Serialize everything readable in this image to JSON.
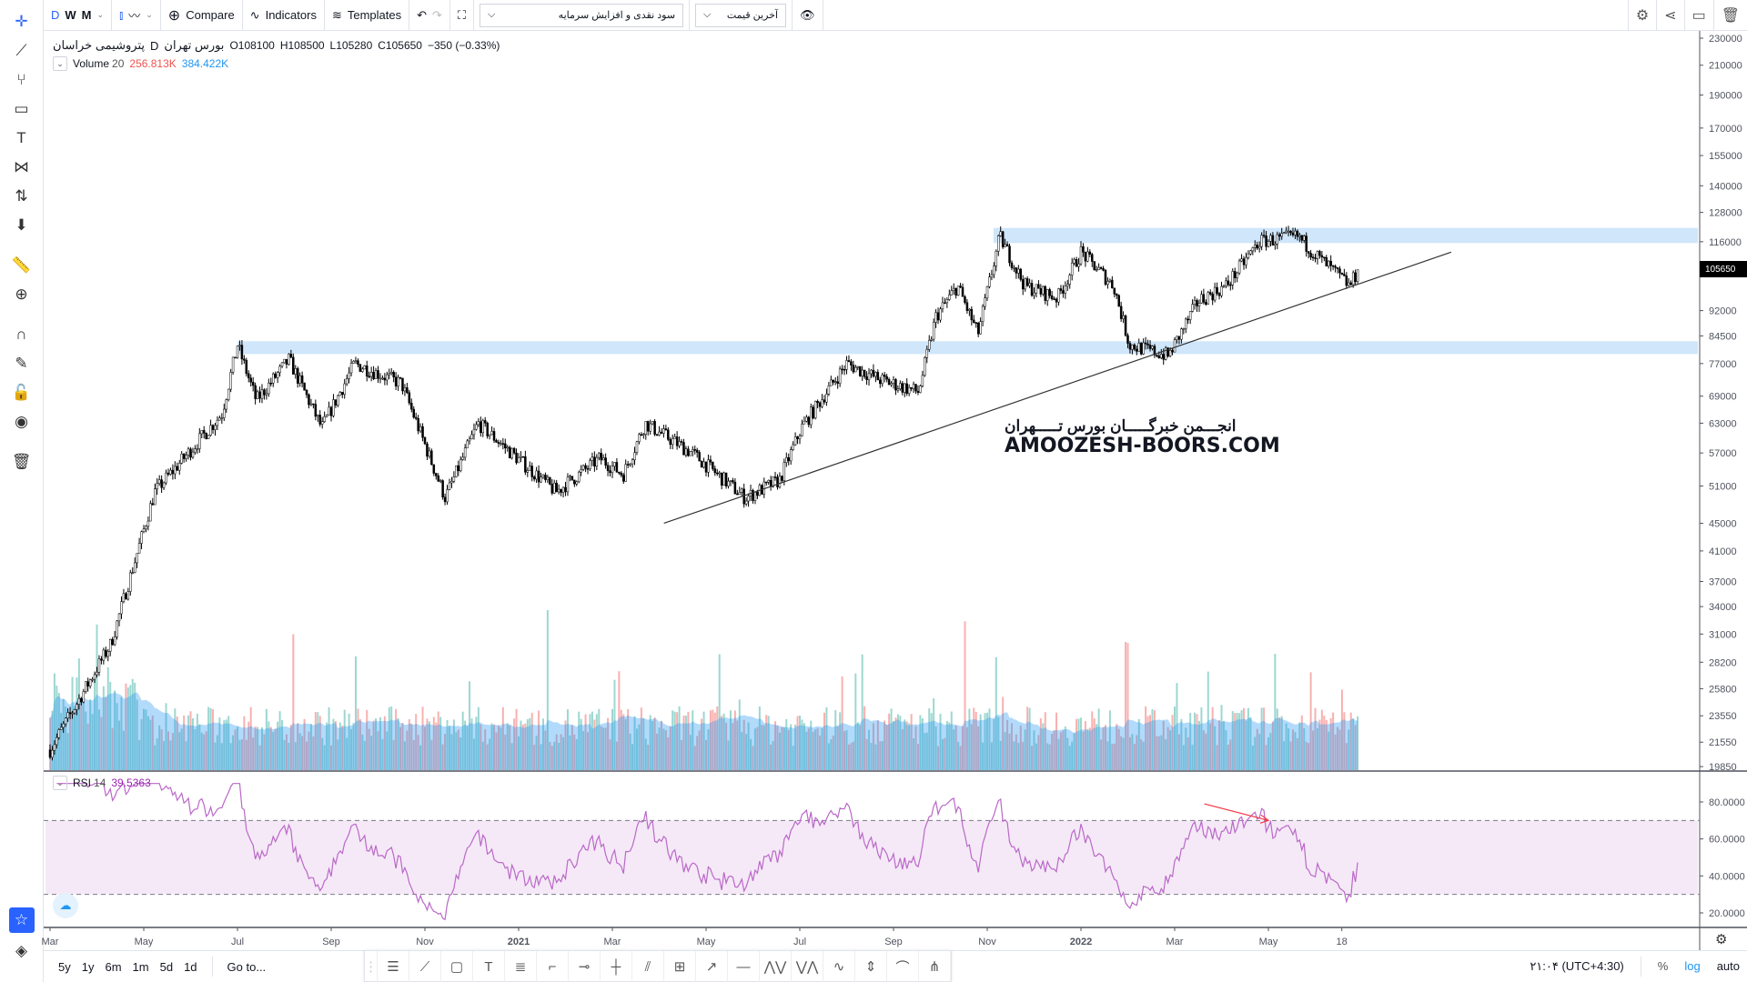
{
  "toolbar": {
    "intervals": [
      "D",
      "W",
      "M"
    ],
    "compare": "Compare",
    "indicators": "Indicators",
    "templates": "Templates",
    "adjust_select": "سود نقدی و افزایش سرمایه",
    "price_select": "آخرین قیمت"
  },
  "left_tools": [
    "crosshair-icon",
    "trend-line-icon",
    "fork-icon",
    "rectangle-icon",
    "text-icon",
    "pattern-icon",
    "prediction-icon",
    "arrow-down-icon",
    "ruler-icon",
    "zoom-in-icon",
    "magnet-icon",
    "lock-drawing-icon",
    "unlock-icon",
    "eye-icon",
    "trash-icon"
  ],
  "symbol": {
    "name": "پتروشیمی خراسان",
    "interval": "D",
    "exchange": "بورس تهران",
    "open": "O108100",
    "high": "H108500",
    "low": "L105280",
    "close": "C105650",
    "change": "−350 (−0.33%)"
  },
  "volume_legend": {
    "label": "Volume",
    "period": "20",
    "value": "256.813K",
    "ma": "384.422K",
    "value_color": "#ef5350",
    "ma_color": "#2196f3"
  },
  "rsi_legend": {
    "label": "RSI",
    "period": "14",
    "value": "39.5363",
    "color": "#9c27b0"
  },
  "watermark": {
    "line1": "انجـــمن خبرگـــــان بورس تـــــهران",
    "line2": "AMOOZESH-BOORS.COM"
  },
  "current_price_label": "105650",
  "bottom": {
    "ranges": [
      "5y",
      "1y",
      "6m",
      "1m",
      "5d",
      "1d"
    ],
    "goto": "Go to...",
    "time": "۲۱:۰۴ (UTC+4:30)",
    "percent": "%",
    "log": "log",
    "auto": "auto"
  },
  "chart_data": {
    "type": "candlestick",
    "scale": "log",
    "price_ticks": [
      230000,
      210000,
      190000,
      170000,
      155000,
      140000,
      128000,
      116000,
      92000,
      84500,
      77000,
      69000,
      63000,
      57000,
      51000,
      45000,
      41000,
      37000,
      34000,
      31000,
      28200,
      25800,
      23550,
      21550,
      19850
    ],
    "ylim": [
      19850,
      230000
    ],
    "time_labels": [
      {
        "label": "Mar",
        "date": "2020-03-01"
      },
      {
        "label": "May",
        "date": "2020-05-01"
      },
      {
        "label": "Jul",
        "date": "2020-07-01"
      },
      {
        "label": "Sep",
        "date": "2020-09-01"
      },
      {
        "label": "Nov",
        "date": "2020-11-01"
      },
      {
        "label": "2021",
        "date": "2021-01-01"
      },
      {
        "label": "Mar",
        "date": "2021-03-01"
      },
      {
        "label": "May",
        "date": "2021-05-01"
      },
      {
        "label": "Jul",
        "date": "2021-07-01"
      },
      {
        "label": "Sep",
        "date": "2021-09-01"
      },
      {
        "label": "Nov",
        "date": "2021-11-01"
      },
      {
        "label": "2022",
        "date": "2022-01-01"
      },
      {
        "label": "Mar",
        "date": "2022-03-01"
      },
      {
        "label": "May",
        "date": "2022-05-01"
      },
      {
        "label": "18",
        "date": "2022-06-18"
      }
    ],
    "close_path": [
      [
        "2020-03-01",
        21000
      ],
      [
        "2020-04-10",
        30000
      ],
      [
        "2020-05-08",
        50000
      ],
      [
        "2020-06-21",
        65000
      ],
      [
        "2020-07-01",
        82000
      ],
      [
        "2020-07-13",
        68000
      ],
      [
        "2020-08-04",
        78000
      ],
      [
        "2020-08-25",
        62000
      ],
      [
        "2020-09-16",
        77000
      ],
      [
        "2020-10-16",
        72000
      ],
      [
        "2020-11-14",
        49000
      ],
      [
        "2020-12-05",
        63000
      ],
      [
        "2021-01-04",
        55000
      ],
      [
        "2021-01-25",
        50000
      ],
      [
        "2021-02-23",
        56000
      ],
      [
        "2021-03-08",
        53000
      ],
      [
        "2021-03-22",
        63000
      ],
      [
        "2021-04-22",
        57000
      ],
      [
        "2021-05-26",
        49000
      ],
      [
        "2021-06-18",
        52000
      ],
      [
        "2021-07-02",
        62000
      ],
      [
        "2021-08-01",
        77000
      ],
      [
        "2021-08-22",
        73000
      ],
      [
        "2021-09-17",
        70000
      ],
      [
        "2021-09-28",
        90000
      ],
      [
        "2021-10-12",
        100000
      ],
      [
        "2021-10-25",
        85000
      ],
      [
        "2021-11-09",
        118000
      ],
      [
        "2021-11-25",
        100000
      ],
      [
        "2021-12-16",
        96000
      ],
      [
        "2022-01-01",
        112000
      ],
      [
        "2022-01-22",
        100000
      ],
      [
        "2022-02-02",
        82000
      ],
      [
        "2022-02-27",
        79000
      ],
      [
        "2022-03-16",
        95000
      ],
      [
        "2022-04-04",
        100000
      ],
      [
        "2022-04-25",
        116000
      ],
      [
        "2022-05-20",
        118000
      ],
      [
        "2022-06-03",
        110000
      ],
      [
        "2022-06-23",
        100000
      ],
      [
        "2022-06-29",
        105650
      ]
    ],
    "zones": [
      {
        "from": "2021-11-05",
        "low": 115500,
        "high": 121500,
        "color": "#cfe6fb"
      },
      {
        "from": "2020-07-01",
        "low": 79500,
        "high": 83000,
        "color": "#cfe6fb"
      }
    ],
    "trendline": {
      "from": [
        "2021-04-04",
        45000
      ],
      "to": [
        "2022-08-28",
        112000
      ]
    },
    "rsi": {
      "ticks": [
        80,
        60,
        40,
        20
      ],
      "upper": 70,
      "lower": 30,
      "annotation_arrow": {
        "from": [
          "2022-03-20",
          79
        ],
        "to": [
          "2022-05-01",
          70
        ],
        "color": "#f23645"
      }
    }
  }
}
